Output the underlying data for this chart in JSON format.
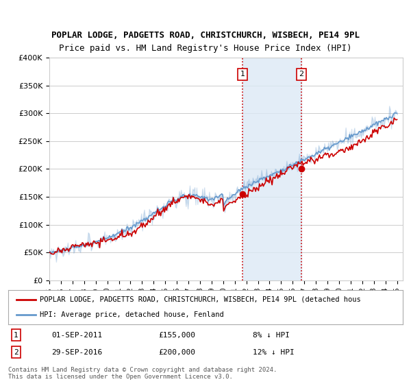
{
  "title1": "POPLAR LODGE, PADGETTS ROAD, CHRISTCHURCH, WISBECH, PE14 9PL",
  "title2": "Price paid vs. HM Land Registry's House Price Index (HPI)",
  "ylabel_ticks": [
    "£0",
    "£50K",
    "£100K",
    "£150K",
    "£200K",
    "£250K",
    "£300K",
    "£350K",
    "£400K"
  ],
  "ylabel_values": [
    0,
    50000,
    100000,
    150000,
    200000,
    250000,
    300000,
    350000,
    400000
  ],
  "xlim_start": 1995.0,
  "xlim_end": 2025.5,
  "ylim": [
    0,
    400000
  ],
  "red_line_color": "#cc0000",
  "blue_line_color": "#6699cc",
  "shaded_region_color": "#dce9f5",
  "shaded_alpha": 0.5,
  "vline_color": "#cc0000",
  "vline_style": ":",
  "marker1_date": 2011.67,
  "marker1_price": 155000,
  "marker2_date": 2016.75,
  "marker2_price": 200000,
  "legend_line1": "POPLAR LODGE, PADGETTS ROAD, CHRISTCHURCH, WISBECH, PE14 9PL (detached hous",
  "legend_line2": "HPI: Average price, detached house, Fenland",
  "annotation1_num": "1",
  "annotation2_num": "2",
  "table_row1": [
    "1",
    "01-SEP-2011",
    "£155,000",
    "8% ↓ HPI"
  ],
  "table_row2": [
    "2",
    "29-SEP-2016",
    "£200,000",
    "12% ↓ HPI"
  ],
  "footnote": "Contains HM Land Registry data © Crown copyright and database right 2024.\nThis data is licensed under the Open Government Licence v3.0.",
  "bg_color": "#ffffff",
  "grid_color": "#cccccc",
  "title_fontsize": 9,
  "tick_fontsize": 8
}
